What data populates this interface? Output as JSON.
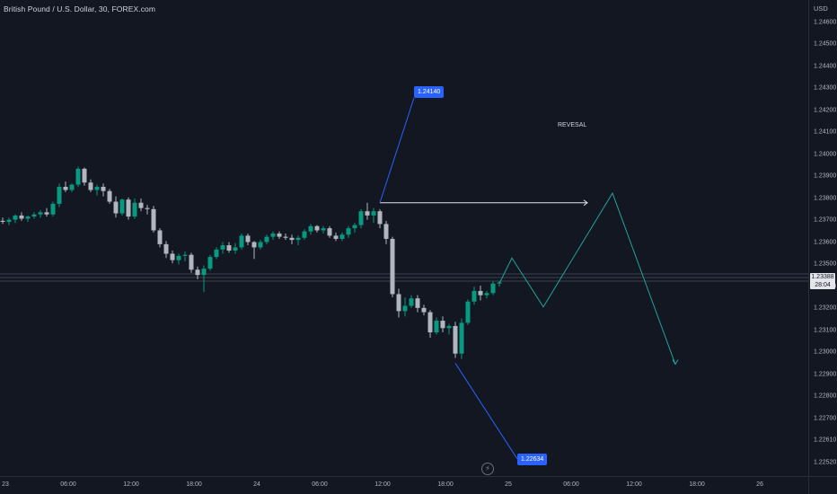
{
  "symbol": {
    "title": "British Pound / U.S. Dollar, 30, FOREX.com"
  },
  "currency": "USD",
  "price_axis": {
    "ticks": [
      "1.24600",
      "1.24500",
      "1.24400",
      "1.24300",
      "1.24200",
      "1.24100",
      "1.24000",
      "1.23900",
      "1.23800",
      "1.23700",
      "1.23600",
      "1.23500",
      "1.23300",
      "1.23200",
      "1.23100",
      "1.23000",
      "1.22900",
      "1.22800",
      "1.22700",
      "1.22610",
      "1.22520"
    ]
  },
  "time_axis": {
    "ticks": [
      "23",
      "06:00",
      "12:00",
      "18:00",
      "24",
      "06:00",
      "12:00",
      "18:00",
      "25",
      "06:00",
      "12:00",
      "18:00",
      "26"
    ]
  },
  "current_price": {
    "price": "1.23388",
    "countdown": "28:04"
  },
  "annotations": {
    "high_callout": "1.24140",
    "low_callout": "1.22634",
    "reversal_text": "REVESAL"
  },
  "colors": {
    "background": "#131722",
    "bull": "#089981",
    "bear": "#b2b5be",
    "projection": "#1fa39a",
    "callout": "#2962ff",
    "leader": "#2962ff"
  },
  "chart_data": {
    "type": "candlestick",
    "title": "British Pound / U.S. Dollar, 30, FOREX.com",
    "ylabel": "USD",
    "ylim": [
      1.2248,
      1.2468
    ],
    "x_unit": "30-minute bars from 23 00:00",
    "candles": [
      [
        1.2397,
        1.24,
        1.2394,
        1.2396
      ],
      [
        1.2396,
        1.24,
        1.2393,
        1.2398
      ],
      [
        1.2398,
        1.2403,
        1.2395,
        1.2402
      ],
      [
        1.2402,
        1.2405,
        1.2397,
        1.2399
      ],
      [
        1.2399,
        1.2402,
        1.2396,
        1.2401
      ],
      [
        1.2401,
        1.2405,
        1.2399,
        1.2403
      ],
      [
        1.2403,
        1.2407,
        1.24,
        1.2405
      ],
      [
        1.2405,
        1.2409,
        1.2401,
        1.2403
      ],
      [
        1.2403,
        1.2415,
        1.2401,
        1.2413
      ],
      [
        1.2413,
        1.2432,
        1.241,
        1.2429
      ],
      [
        1.2429,
        1.2434,
        1.2424,
        1.2426
      ],
      [
        1.2426,
        1.2432,
        1.2424,
        1.2431
      ],
      [
        1.2431,
        1.2448,
        1.2429,
        1.2446
      ],
      [
        1.2446,
        1.2447,
        1.243,
        1.2433
      ],
      [
        1.2433,
        1.2436,
        1.2424,
        1.2426
      ],
      [
        1.2426,
        1.2431,
        1.2421,
        1.2429
      ],
      [
        1.2429,
        1.2432,
        1.242,
        1.2425
      ],
      [
        1.2425,
        1.2427,
        1.2413,
        1.2415
      ],
      [
        1.2415,
        1.242,
        1.24,
        1.2404
      ],
      [
        1.2404,
        1.2418,
        1.2402,
        1.2417
      ],
      [
        1.2417,
        1.2419,
        1.2398,
        1.2401
      ],
      [
        1.2401,
        1.2418,
        1.2399,
        1.2414
      ],
      [
        1.2414,
        1.2418,
        1.2406,
        1.2409
      ],
      [
        1.2409,
        1.2412,
        1.2403,
        1.2408
      ],
      [
        1.2408,
        1.2411,
        1.2386,
        1.2388
      ],
      [
        1.2388,
        1.239,
        1.2372,
        1.2375
      ],
      [
        1.2375,
        1.2378,
        1.2362,
        1.2366
      ],
      [
        1.2366,
        1.2369,
        1.2357,
        1.236
      ],
      [
        1.236,
        1.2366,
        1.2356,
        1.2364
      ],
      [
        1.2364,
        1.2368,
        1.2359,
        1.2365
      ],
      [
        1.2365,
        1.2367,
        1.2348,
        1.2351
      ],
      [
        1.2351,
        1.2354,
        1.2342,
        1.2346
      ],
      [
        1.2346,
        1.2355,
        1.233,
        1.2352
      ],
      [
        1.2352,
        1.2365,
        1.235,
        1.2363
      ],
      [
        1.2363,
        1.2372,
        1.2361,
        1.237
      ],
      [
        1.237,
        1.2377,
        1.2366,
        1.2374
      ],
      [
        1.2374,
        1.2377,
        1.2367,
        1.2369
      ],
      [
        1.2369,
        1.2376,
        1.2366,
        1.2372
      ],
      [
        1.2372,
        1.2385,
        1.237,
        1.2383
      ],
      [
        1.2383,
        1.2385,
        1.2374,
        1.2377
      ],
      [
        1.2377,
        1.2378,
        1.2361,
        1.2372
      ],
      [
        1.2372,
        1.2379,
        1.237,
        1.2377
      ],
      [
        1.2377,
        1.2384,
        1.2375,
        1.2382
      ],
      [
        1.2382,
        1.2387,
        1.2379,
        1.2385
      ],
      [
        1.2385,
        1.2387,
        1.238,
        1.2382
      ],
      [
        1.2382,
        1.2385,
        1.2379,
        1.2381
      ],
      [
        1.2381,
        1.2384,
        1.2375,
        1.2379
      ],
      [
        1.2379,
        1.2383,
        1.2374,
        1.2381
      ],
      [
        1.2381,
        1.2389,
        1.2379,
        1.2387
      ],
      [
        1.2387,
        1.2394,
        1.2384,
        1.2392
      ],
      [
        1.2392,
        1.2393,
        1.2386,
        1.2388
      ],
      [
        1.2388,
        1.2392,
        1.2385,
        1.239
      ],
      [
        1.239,
        1.2392,
        1.2381,
        1.2383
      ],
      [
        1.2383,
        1.2386,
        1.2378,
        1.238
      ],
      [
        1.238,
        1.2386,
        1.2378,
        1.2384
      ],
      [
        1.2384,
        1.2392,
        1.2381,
        1.239
      ],
      [
        1.239,
        1.2395,
        1.2386,
        1.2393
      ],
      [
        1.2393,
        1.2408,
        1.239,
        1.2406
      ],
      [
        1.2406,
        1.2414,
        1.2398,
        1.2402
      ],
      [
        1.2402,
        1.2409,
        1.2395,
        1.2406
      ],
      [
        1.2406,
        1.2408,
        1.239,
        1.2394
      ],
      [
        1.2394,
        1.2397,
        1.2375,
        1.238
      ],
      [
        1.238,
        1.2382,
        1.2325,
        1.2328
      ],
      [
        1.2328,
        1.2333,
        1.2306,
        1.2312
      ],
      [
        1.2312,
        1.2325,
        1.2307,
        1.2317
      ],
      [
        1.2317,
        1.2327,
        1.2315,
        1.2324
      ],
      [
        1.2324,
        1.2327,
        1.2311,
        1.2315
      ],
      [
        1.2315,
        1.2318,
        1.2308,
        1.2311
      ],
      [
        1.2311,
        1.2313,
        1.2287,
        1.2292
      ],
      [
        1.2292,
        1.2306,
        1.229,
        1.2303
      ],
      [
        1.2303,
        1.2307,
        1.2292,
        1.2296
      ],
      [
        1.2296,
        1.23,
        1.229,
        1.2298
      ],
      [
        1.2298,
        1.2302,
        1.2268,
        1.2272
      ],
      [
        1.2272,
        1.2305,
        1.2267,
        1.2301
      ],
      [
        1.2301,
        1.2323,
        1.2299,
        1.2321
      ],
      [
        1.2321,
        1.2335,
        1.2318,
        1.2331
      ],
      [
        1.2331,
        1.2336,
        1.2322,
        1.2327
      ],
      [
        1.2327,
        1.2331,
        1.2324,
        1.2329
      ],
      [
        1.2329,
        1.234,
        1.2327,
        1.2338
      ],
      [
        1.2338,
        1.234,
        1.2335,
        1.2339
      ]
    ],
    "projection": [
      {
        "bar": 79,
        "price": 1.2338
      },
      {
        "bar": 81,
        "price": 1.2362
      },
      {
        "bar": 86,
        "price": 1.2316
      },
      {
        "bar": 97,
        "price": 1.2423
      },
      {
        "bar": 107,
        "price": 1.2262
      }
    ],
    "annotations": [
      {
        "label": "1.24140",
        "bar": 60,
        "price": 1.2414
      },
      {
        "label": "1.22634",
        "bar": 72,
        "price": 1.2263
      },
      {
        "label": "REVESAL",
        "from_bar": 60,
        "to_bar": 93,
        "price": 1.2414
      }
    ]
  }
}
